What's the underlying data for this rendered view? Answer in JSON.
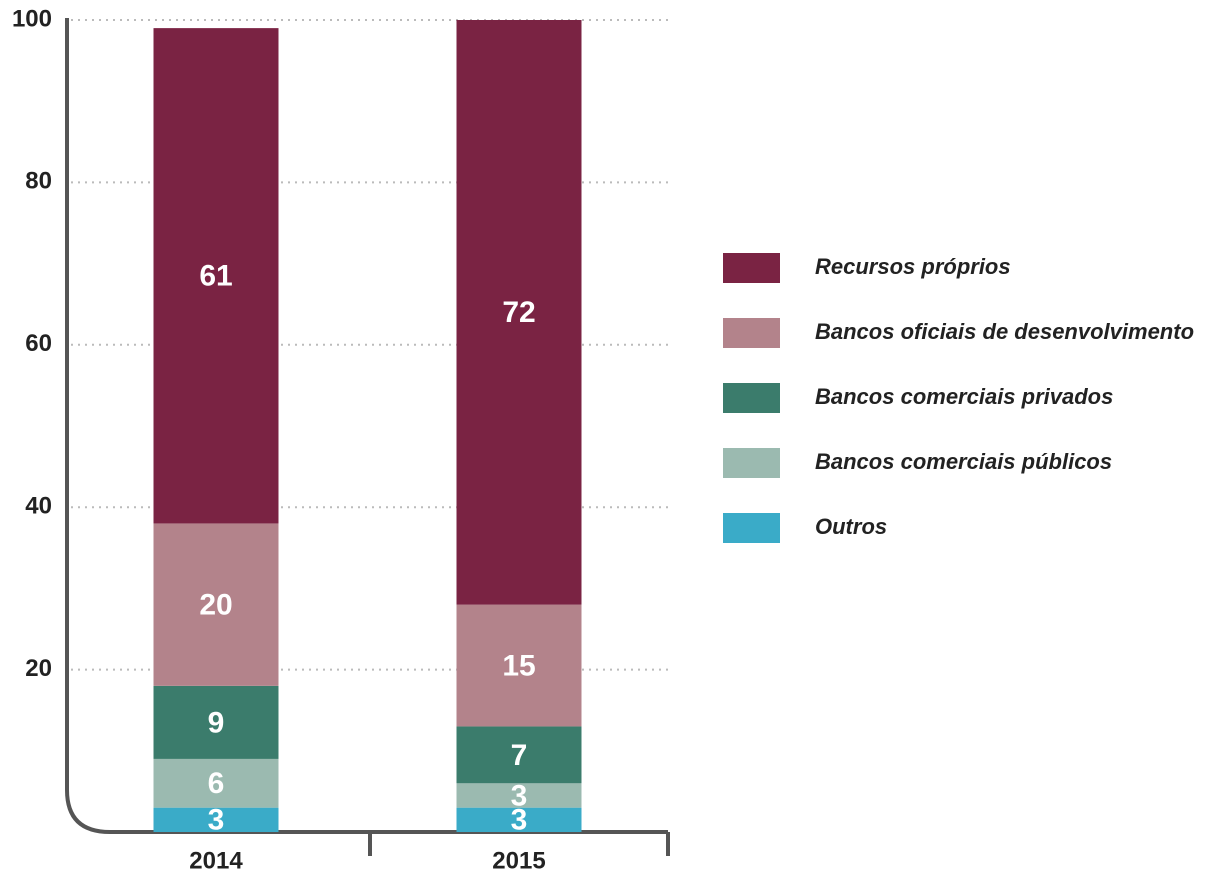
{
  "chart_data": {
    "type": "bar",
    "stacked": true,
    "categories": [
      "2014",
      "2015"
    ],
    "series": [
      {
        "name": "Recursos próprios",
        "color": "#7a2343",
        "values": [
          61,
          72
        ]
      },
      {
        "name": "Bancos oficiais de desenvolvimento",
        "color": "#b3838b",
        "values": [
          20,
          15
        ]
      },
      {
        "name": "Bancos comerciais privados",
        "color": "#3b7c6c",
        "values": [
          9,
          7
        ]
      },
      {
        "name": "Bancos comerciais públicos",
        "color": "#9bbab0",
        "values": [
          6,
          3
        ]
      },
      {
        "name": "Outros",
        "color": "#3aabc8",
        "values": [
          3,
          3
        ]
      }
    ],
    "ylim": [
      0,
      100
    ],
    "yticks": [
      20,
      40,
      60,
      80,
      100
    ],
    "grid": true,
    "legend": "right"
  }
}
